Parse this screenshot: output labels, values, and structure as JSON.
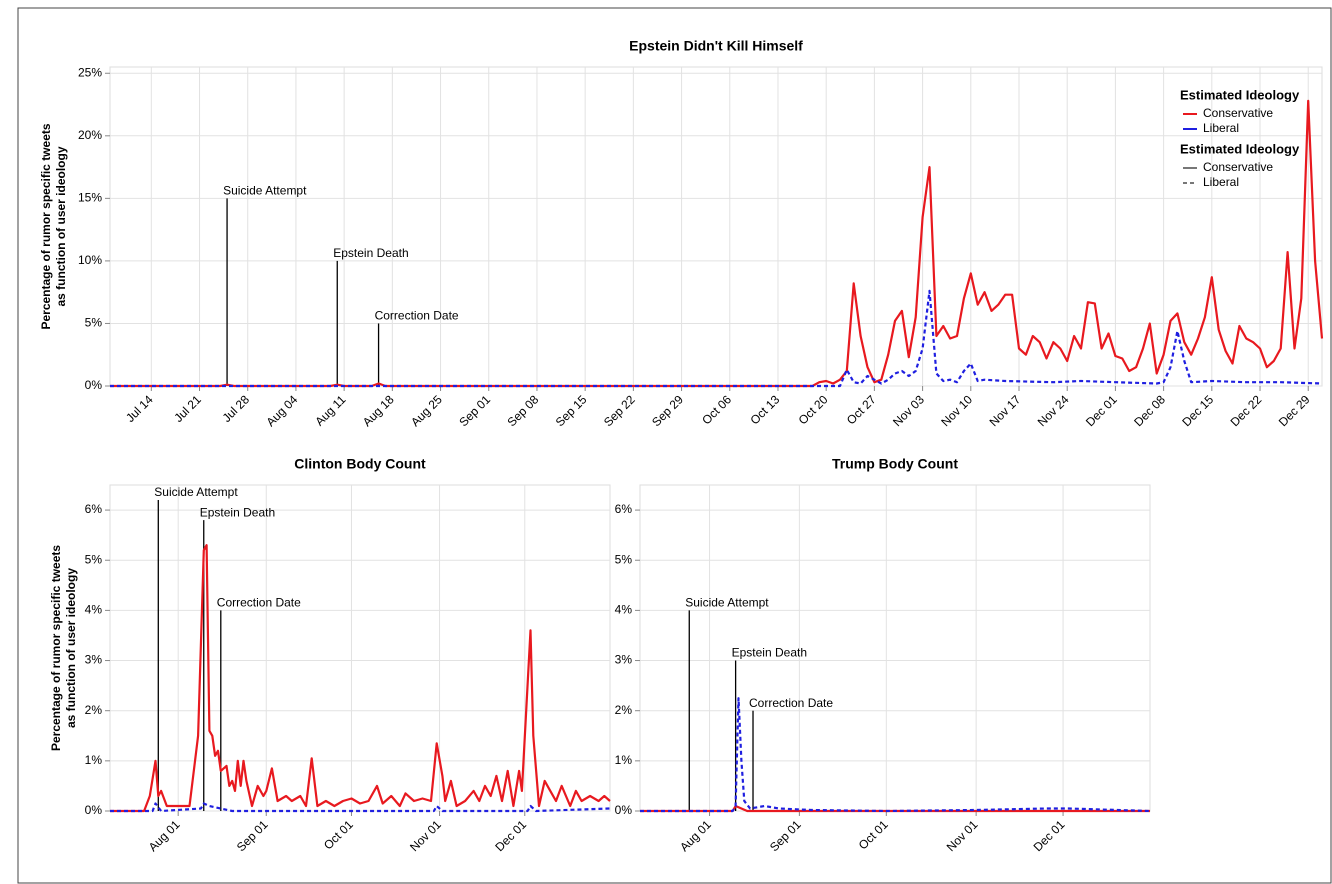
{
  "chart_data": [
    {
      "type": "line",
      "title": "Epstein Didn't Kill Himself",
      "y_label": [
        "Percentage of rumor specific tweets",
        "as function of user ideology"
      ],
      "xlim": [
        "Jul 08",
        "Dec 31"
      ],
      "xticks": [
        "Jul 14",
        "Jul 21",
        "Jul 28",
        "Aug 04",
        "Aug 11",
        "Aug 18",
        "Aug 25",
        "Sep 01",
        "Sep 08",
        "Sep 15",
        "Sep 22",
        "Sep 29",
        "Oct 06",
        "Oct 13",
        "Oct 20",
        "Oct 27",
        "Nov 03",
        "Nov 10",
        "Nov 17",
        "Nov 24",
        "Dec 01",
        "Dec 08",
        "Dec 15",
        "Dec 22",
        "Dec 29"
      ],
      "ylim": [
        0,
        25.5
      ],
      "yticks": [
        {
          "value": 0,
          "label": "0%"
        },
        {
          "value": 5,
          "label": "5%"
        },
        {
          "value": 10,
          "label": "10%"
        },
        {
          "value": 15,
          "label": "15%"
        },
        {
          "value": 20,
          "label": "20%"
        },
        {
          "value": 25,
          "label": "25%"
        }
      ],
      "grid": true,
      "legends": [
        {
          "title": "Estimated Ideology",
          "by": "color"
        },
        {
          "title": "Estimated Ideology",
          "by": "dash"
        }
      ],
      "annotations": [
        {
          "label": "Suicide Attempt",
          "x": "Jul 25",
          "y": 15
        },
        {
          "label": "Epstein Death",
          "x": "Aug 10",
          "y": 10
        },
        {
          "label": "Correction Date",
          "x": "Aug 16",
          "y": 5
        }
      ],
      "series": [
        {
          "name": "Conservative",
          "color": "#e8191f",
          "dash": false,
          "x": [
            "Jul 08",
            "Jul 24",
            "Jul 25",
            "Jul 26",
            "Aug 09",
            "Aug 10",
            "Aug 11",
            "Aug 15",
            "Aug 16",
            "Aug 17",
            "Oct 18",
            "Oct 19",
            "Oct 20",
            "Oct 21",
            "Oct 22",
            "Oct 23",
            "Oct 24",
            "Oct 25",
            "Oct 26",
            "Oct 27",
            "Oct 28",
            "Oct 29",
            "Oct 30",
            "Oct 31",
            "Nov 01",
            "Nov 02",
            "Nov 03",
            "Nov 04",
            "Nov 05",
            "Nov 06",
            "Nov 07",
            "Nov 08",
            "Nov 09",
            "Nov 10",
            "Nov 11",
            "Nov 12",
            "Nov 13",
            "Nov 14",
            "Nov 15",
            "Nov 16",
            "Nov 17",
            "Nov 18",
            "Nov 19",
            "Nov 20",
            "Nov 21",
            "Nov 22",
            "Nov 23",
            "Nov 24",
            "Nov 25",
            "Nov 26",
            "Nov 27",
            "Nov 28",
            "Nov 29",
            "Nov 30",
            "Dec 01",
            "Dec 02",
            "Dec 03",
            "Dec 04",
            "Dec 05",
            "Dec 06",
            "Dec 07",
            "Dec 08",
            "Dec 09",
            "Dec 10",
            "Dec 11",
            "Dec 12",
            "Dec 13",
            "Dec 14",
            "Dec 15",
            "Dec 16",
            "Dec 17",
            "Dec 18",
            "Dec 19",
            "Dec 20",
            "Dec 21",
            "Dec 22",
            "Dec 23",
            "Dec 24",
            "Dec 25",
            "Dec 26",
            "Dec 27",
            "Dec 28",
            "Dec 29",
            "Dec 30",
            "Dec 31"
          ],
          "values": [
            0,
            0,
            0.1,
            0,
            0,
            0.1,
            0,
            0,
            0.2,
            0,
            0,
            0.3,
            0.4,
            0.2,
            0.5,
            1.2,
            8.2,
            4,
            1.5,
            0.3,
            0.5,
            2.5,
            5.2,
            6,
            2.3,
            5.5,
            13.5,
            17.5,
            4,
            4.8,
            3.8,
            4,
            7,
            9,
            6.5,
            7.5,
            6,
            6.5,
            7.3,
            7.3,
            3,
            2.5,
            4,
            3.5,
            2.2,
            3.5,
            3,
            2,
            4,
            3,
            6.7,
            6.6,
            3,
            4.2,
            2.4,
            2.2,
            1.2,
            1.5,
            3,
            5,
            1,
            2.5,
            5.2,
            5.8,
            3.5,
            2.5,
            3.8,
            5.5,
            8.7,
            4.5,
            2.8,
            1.8,
            4.8,
            3.8,
            3.5,
            3,
            1.5,
            2,
            3,
            10.7,
            3,
            7,
            22.8,
            10,
            3.8
          ]
        },
        {
          "name": "Liberal",
          "color": "#1f1fe0",
          "dash": true,
          "x": [
            "Jul 08",
            "Oct 22",
            "Oct 23",
            "Oct 24",
            "Oct 25",
            "Oct 26",
            "Oct 27",
            "Oct 28",
            "Oct 29",
            "Oct 30",
            "Oct 31",
            "Nov 01",
            "Nov 02",
            "Nov 03",
            "Nov 04",
            "Nov 05",
            "Nov 06",
            "Nov 07",
            "Nov 08",
            "Nov 09",
            "Nov 10",
            "Nov 11",
            "Nov 12",
            "Nov 15",
            "Nov 22",
            "Nov 26",
            "Dec 01",
            "Dec 07",
            "Dec 08",
            "Dec 09",
            "Dec 10",
            "Dec 11",
            "Dec 12",
            "Dec 15",
            "Dec 20",
            "Dec 25",
            "Dec 31"
          ],
          "values": [
            0,
            0,
            1.3,
            0.3,
            0.2,
            0.8,
            0.5,
            0.2,
            0.5,
            1,
            1.2,
            0.8,
            1.2,
            3,
            7.6,
            1,
            0.4,
            0.5,
            0.3,
            1.2,
            1.8,
            0.4,
            0.5,
            0.4,
            0.3,
            0.4,
            0.3,
            0.2,
            0.3,
            1.5,
            4.4,
            2,
            0.3,
            0.4,
            0.3,
            0.3,
            0.2
          ]
        }
      ]
    },
    {
      "type": "line",
      "title": "Clinton Body Count",
      "y_label": [
        "Percentage of rumor specific tweets",
        "as function of user ideology"
      ],
      "xlim": [
        "Jul 08",
        "Dec 31"
      ],
      "xticks": [
        "Aug 01",
        "Sep 01",
        "Oct 01",
        "Nov 01",
        "Dec 01"
      ],
      "ylim": [
        0,
        6.5
      ],
      "yticks": [
        {
          "value": 0,
          "label": "0%"
        },
        {
          "value": 1,
          "label": "1%"
        },
        {
          "value": 2,
          "label": "2%"
        },
        {
          "value": 3,
          "label": "3%"
        },
        {
          "value": 4,
          "label": "4%"
        },
        {
          "value": 5,
          "label": "5%"
        },
        {
          "value": 6,
          "label": "6%"
        }
      ],
      "grid": true,
      "annotations": [
        {
          "label": "Suicide Attempt",
          "x": "Jul 25",
          "y": 6.2
        },
        {
          "label": "Epstein Death",
          "x": "Aug 10",
          "y": 5.8
        },
        {
          "label": "Correction Date",
          "x": "Aug 16",
          "y": 4
        }
      ],
      "series": [
        {
          "name": "Conservative",
          "color": "#e8191f",
          "dash": false,
          "x": [
            "Jul 08",
            "Jul 20",
            "Jul 22",
            "Jul 24",
            "Jul 25",
            "Jul 26",
            "Jul 28",
            "Aug 01",
            "Aug 03",
            "Aug 05",
            "Aug 08",
            "Aug 10",
            "Aug 11",
            "Aug 12",
            "Aug 13",
            "Aug 14",
            "Aug 15",
            "Aug 16",
            "Aug 18",
            "Aug 19",
            "Aug 20",
            "Aug 21",
            "Aug 22",
            "Aug 23",
            "Aug 24",
            "Aug 25",
            "Aug 27",
            "Aug 29",
            "Aug 31",
            "Sep 01",
            "Sep 03",
            "Sep 05",
            "Sep 08",
            "Sep 10",
            "Sep 13",
            "Sep 15",
            "Sep 17",
            "Sep 19",
            "Sep 22",
            "Sep 25",
            "Sep 28",
            "Oct 01",
            "Oct 04",
            "Oct 07",
            "Oct 10",
            "Oct 12",
            "Oct 15",
            "Oct 18",
            "Oct 20",
            "Oct 23",
            "Oct 26",
            "Oct 29",
            "Oct 31",
            "Nov 02",
            "Nov 03",
            "Nov 05",
            "Nov 07",
            "Nov 10",
            "Nov 13",
            "Nov 15",
            "Nov 17",
            "Nov 19",
            "Nov 21",
            "Nov 23",
            "Nov 25",
            "Nov 27",
            "Nov 29",
            "Nov 30",
            "Dec 03",
            "Dec 04",
            "Dec 06",
            "Dec 08",
            "Dec 10",
            "Dec 12",
            "Dec 14",
            "Dec 17",
            "Dec 19",
            "Dec 21",
            "Dec 24",
            "Dec 27",
            "Dec 29",
            "Dec 31"
          ],
          "values": [
            0,
            0,
            0.3,
            1,
            0.3,
            0.4,
            0.1,
            0.1,
            0.1,
            0.1,
            1.5,
            5.2,
            5.3,
            1.6,
            1.5,
            1.1,
            1.2,
            0.8,
            0.9,
            0.5,
            0.6,
            0.4,
            1,
            0.5,
            1,
            0.6,
            0.1,
            0.5,
            0.3,
            0.4,
            0.85,
            0.2,
            0.3,
            0.2,
            0.3,
            0.1,
            1.05,
            0.1,
            0.2,
            0.1,
            0.2,
            0.25,
            0.15,
            0.2,
            0.5,
            0.15,
            0.3,
            0.1,
            0.35,
            0.2,
            0.25,
            0.2,
            1.35,
            0.7,
            0.2,
            0.6,
            0.1,
            0.2,
            0.4,
            0.2,
            0.5,
            0.3,
            0.7,
            0.2,
            0.8,
            0.1,
            0.8,
            0.4,
            3.6,
            1.5,
            0.1,
            0.6,
            0.4,
            0.2,
            0.5,
            0.1,
            0.4,
            0.2,
            0.3,
            0.2,
            0.3,
            0.2
          ]
        },
        {
          "name": "Liberal",
          "color": "#1f1fe0",
          "dash": true,
          "x": [
            "Jul 08",
            "Jul 23",
            "Jul 24",
            "Jul 26",
            "Aug 09",
            "Aug 10",
            "Aug 12",
            "Aug 16",
            "Aug 20",
            "Oct 30",
            "Oct 31",
            "Nov 02",
            "Dec 02",
            "Dec 03",
            "Dec 05",
            "Dec 31"
          ],
          "values": [
            0,
            0,
            0.15,
            0,
            0.05,
            0.15,
            0.1,
            0.05,
            0,
            0,
            0.1,
            0,
            0,
            0.1,
            0,
            0.05
          ]
        }
      ]
    },
    {
      "type": "line",
      "title": "Trump Body Count",
      "xlim": [
        "Jul 08",
        "Dec 31"
      ],
      "xticks": [
        "Aug 01",
        "Sep 01",
        "Oct 01",
        "Nov 01",
        "Dec 01"
      ],
      "ylim": [
        0,
        6.5
      ],
      "yticks": [
        {
          "value": 0,
          "label": "0%"
        },
        {
          "value": 1,
          "label": "1%"
        },
        {
          "value": 2,
          "label": "2%"
        },
        {
          "value": 3,
          "label": "3%"
        },
        {
          "value": 4,
          "label": "4%"
        },
        {
          "value": 5,
          "label": "5%"
        },
        {
          "value": 6,
          "label": "6%"
        }
      ],
      "grid": true,
      "annotations": [
        {
          "label": "Suicide Attempt",
          "x": "Jul 25",
          "y": 4
        },
        {
          "label": "Epstein Death",
          "x": "Aug 10",
          "y": 3
        },
        {
          "label": "Correction Date",
          "x": "Aug 16",
          "y": 2
        }
      ],
      "series": [
        {
          "name": "Conservative",
          "color": "#e8191f",
          "dash": false,
          "x": [
            "Jul 08",
            "Aug 09",
            "Aug 10",
            "Aug 12",
            "Aug 14",
            "Dec 31"
          ],
          "values": [
            0,
            0,
            0.1,
            0.05,
            0,
            0
          ]
        },
        {
          "name": "Liberal",
          "color": "#1f1fe0",
          "dash": true,
          "x": [
            "Jul 08",
            "Aug 09",
            "Aug 10",
            "Aug 11",
            "Aug 12",
            "Aug 13",
            "Aug 15",
            "Aug 20",
            "Aug 25",
            "Sep 05",
            "Oct 01",
            "Nov 01",
            "Nov 25",
            "Nov 27",
            "Dec 03",
            "Dec 31"
          ],
          "values": [
            0,
            0,
            0.1,
            2.25,
            1,
            0.2,
            0.05,
            0.1,
            0.05,
            0.02,
            0,
            0.02,
            0.05,
            0.05,
            0.05,
            0
          ]
        }
      ]
    }
  ]
}
